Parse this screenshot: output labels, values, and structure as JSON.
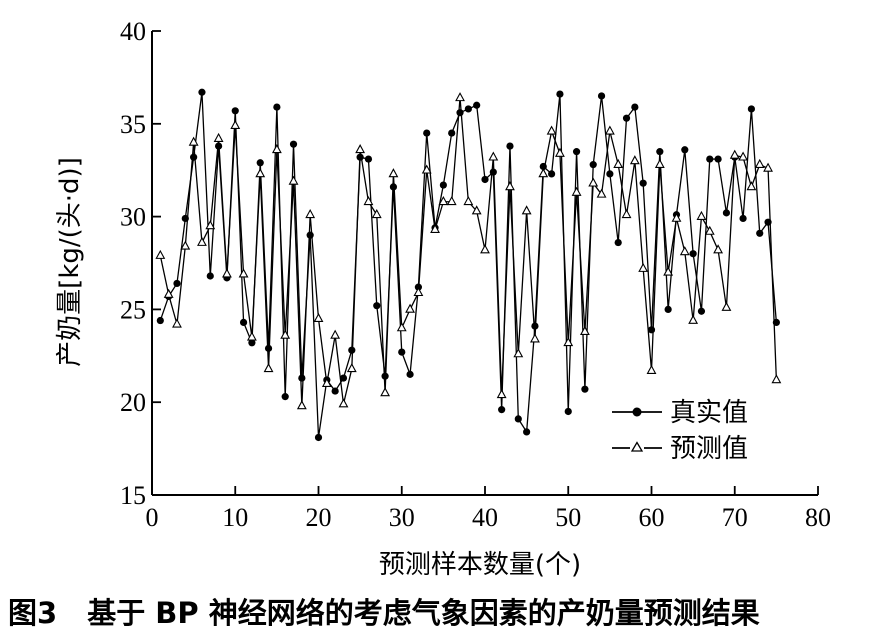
{
  "figure_caption": {
    "number": "图3",
    "text": "基于 BP 神经网络的考虑气象因素的产奶量预测结果"
  },
  "chart_data": {
    "type": "line",
    "title": "",
    "xlabel": "预测样本数量(个)",
    "ylabel": "产奶量[kg/(头·d)]",
    "xlim": [
      0,
      80
    ],
    "ylim": [
      15,
      40
    ],
    "xticks": [
      0,
      10,
      20,
      30,
      40,
      50,
      60,
      70,
      80
    ],
    "yticks": [
      15,
      20,
      25,
      30,
      35,
      40
    ],
    "grid": false,
    "legend_position": "bottom-right",
    "x": [
      1,
      2,
      3,
      4,
      5,
      6,
      7,
      8,
      9,
      10,
      11,
      12,
      13,
      14,
      15,
      16,
      17,
      18,
      19,
      20,
      21,
      22,
      23,
      24,
      25,
      26,
      27,
      28,
      29,
      30,
      31,
      32,
      33,
      34,
      35,
      36,
      37,
      38,
      39,
      40,
      41,
      42,
      43,
      44,
      45,
      46,
      47,
      48,
      49,
      50,
      51,
      52,
      53,
      54,
      55,
      56,
      57,
      58,
      59,
      60,
      61,
      62,
      63,
      64,
      65,
      66,
      67,
      68,
      69,
      70,
      71,
      72,
      73,
      74,
      75
    ],
    "series": [
      {
        "name": "真实值",
        "marker": "filled-circle",
        "color": "#000000",
        "values": [
          24.4,
          25.7,
          26.4,
          29.9,
          33.2,
          36.7,
          26.8,
          33.8,
          26.7,
          35.7,
          24.3,
          23.2,
          32.9,
          22.9,
          35.9,
          20.3,
          33.9,
          21.3,
          29.0,
          18.1,
          21.2,
          20.6,
          21.3,
          22.8,
          33.2,
          33.1,
          25.2,
          21.4,
          31.6,
          22.7,
          21.5,
          26.2,
          34.5,
          29.4,
          31.7,
          34.5,
          35.6,
          35.8,
          36.0,
          32.0,
          32.4,
          19.6,
          33.8,
          19.1,
          18.4,
          24.1,
          32.7,
          32.3,
          36.6,
          19.5,
          33.5,
          20.7,
          32.8,
          36.5,
          32.3,
          28.6,
          35.3,
          35.9,
          31.8,
          23.9,
          33.5,
          25.0,
          30.1,
          33.6,
          28.0,
          24.9,
          33.1,
          33.1,
          30.2,
          33.2,
          29.9,
          35.8,
          29.1,
          29.7,
          24.3
        ]
      },
      {
        "name": "预测值",
        "marker": "open-triangle",
        "color": "#000000",
        "values": [
          27.9,
          25.8,
          24.2,
          28.4,
          34.0,
          28.6,
          29.5,
          34.2,
          26.9,
          34.9,
          26.9,
          23.5,
          32.3,
          21.8,
          33.6,
          23.6,
          31.9,
          19.8,
          30.1,
          24.5,
          21.0,
          23.6,
          19.9,
          21.8,
          33.6,
          30.8,
          30.1,
          20.5,
          32.3,
          24.0,
          25.0,
          25.9,
          32.5,
          29.3,
          30.8,
          30.8,
          36.4,
          30.8,
          30.3,
          28.2,
          33.2,
          20.4,
          31.6,
          22.6,
          30.3,
          23.4,
          32.3,
          34.6,
          33.4,
          23.2,
          31.3,
          23.8,
          31.8,
          31.2,
          34.6,
          32.8,
          30.1,
          33.0,
          27.2,
          21.7,
          32.8,
          27.0,
          29.9,
          28.1,
          24.4,
          30.0,
          29.2,
          28.2,
          25.1,
          33.3,
          33.2,
          31.6,
          32.8,
          32.6,
          21.2
        ]
      }
    ]
  }
}
